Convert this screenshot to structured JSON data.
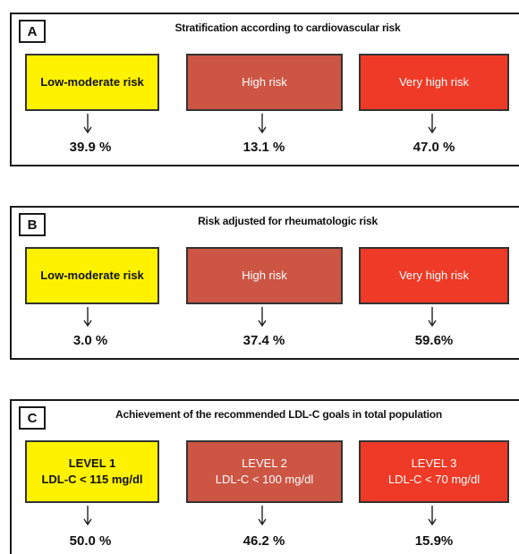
{
  "panels": [
    {
      "letter": "A",
      "title": "Stratification according to cardiovascular risk",
      "boxes": [
        {
          "lines": [
            "Low-moderate risk"
          ],
          "color": "#fff200",
          "percent": "39.9 %"
        },
        {
          "lines": [
            "High risk"
          ],
          "color": "#cc5544",
          "percent": "13.1 %"
        },
        {
          "lines": [
            "Very high risk"
          ],
          "color": "#ee3a26",
          "percent": "47.0 %"
        }
      ]
    },
    {
      "letter": "B",
      "title": "Risk adjusted for rheumatologic risk",
      "boxes": [
        {
          "lines": [
            "Low-moderate risk"
          ],
          "color": "#fff200",
          "percent": "3.0 %"
        },
        {
          "lines": [
            "High risk"
          ],
          "color": "#cc5544",
          "percent": "37.4 %"
        },
        {
          "lines": [
            "Very high risk"
          ],
          "color": "#ee3a26",
          "percent": "59.6%"
        }
      ]
    },
    {
      "letter": "C",
      "title": "Achievement of the recommended LDL-C goals  in total population",
      "boxes": [
        {
          "lines": [
            "LEVEL 1",
            "LDL-C < 115 mg/dl"
          ],
          "color": "#fff200",
          "percent": "50.0 %"
        },
        {
          "lines": [
            "LEVEL 2",
            "LDL-C < 100 mg/dl"
          ],
          "color": "#cc5544",
          "percent": "46.2 %"
        },
        {
          "lines": [
            "LEVEL 3",
            "LDL-C < 70 mg/dl"
          ],
          "color": "#ee3a26",
          "percent": "15.9%"
        }
      ]
    }
  ]
}
